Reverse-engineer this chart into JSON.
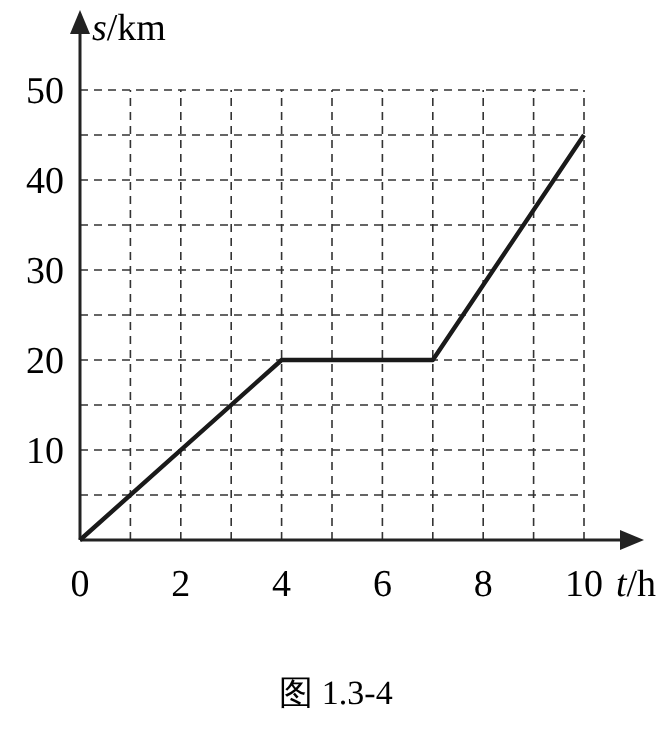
{
  "chart_data": {
    "type": "line",
    "xlabel": "t/h",
    "ylabel": "s/km",
    "x": [
      0,
      4,
      7,
      10
    ],
    "series": [
      {
        "color": "#1a1a1a",
        "values": [
          0,
          20,
          20,
          45
        ]
      }
    ],
    "xlim": [
      0,
      10
    ],
    "ylim": [
      0,
      50
    ],
    "xticks": [
      0,
      {
        "value": 1,
        "label": null
      },
      2,
      {
        "value": 3,
        "label": null
      },
      4,
      {
        "value": 5,
        "label": null
      },
      6,
      {
        "value": 7,
        "label": null
      },
      8,
      {
        "value": 9,
        "label": null
      },
      10
    ],
    "yticks": [
      {
        "value": 5,
        "label": null
      },
      10,
      {
        "value": 15,
        "label": null
      },
      20,
      {
        "value": 25,
        "label": null
      },
      30,
      {
        "value": 35,
        "label": null
      },
      40,
      {
        "value": 45,
        "label": null
      },
      50
    ],
    "grid": true,
    "line_style": "solid",
    "marker": "none",
    "annotations": [
      "图 1.3-4"
    ]
  }
}
